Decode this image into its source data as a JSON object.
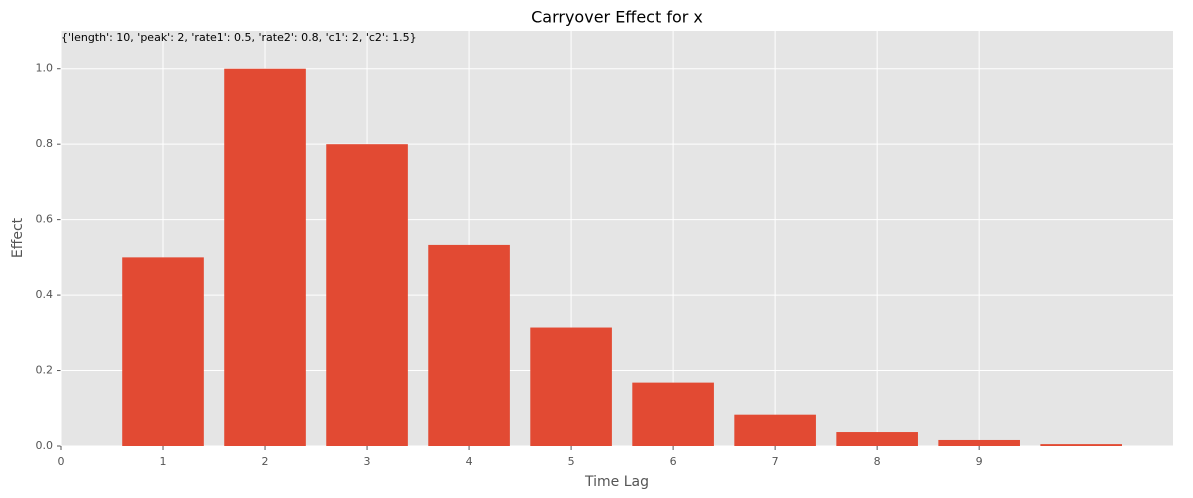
{
  "chart_data": {
    "type": "bar",
    "title": "Carryover Effect for x",
    "annotation": "{'length': 10, 'peak': 2, 'rate1': 0.5, 'rate2': 0.8, 'c1': 2, 'c2': 1.5}",
    "xlabel": "Time Lag",
    "ylabel": "Effect",
    "x": [
      1,
      2,
      3,
      4,
      5,
      6,
      7,
      8,
      9,
      10
    ],
    "values": [
      0.5,
      1.0,
      0.8,
      0.533,
      0.314,
      0.168,
      0.083,
      0.037,
      0.016,
      0.005
    ],
    "bar_width": 0.8,
    "color": "#e24a33",
    "xlim": [
      0,
      10.9
    ],
    "xticks": [
      0,
      1,
      2,
      3,
      4,
      5,
      6,
      7,
      8,
      9
    ],
    "ylim": [
      0,
      1.1
    ],
    "yticks": [
      {
        "value": 0,
        "label": "0.0"
      },
      {
        "value": 0.2,
        "label": "0.2"
      },
      {
        "value": 0.4,
        "label": "0.4"
      },
      {
        "value": 0.6,
        "label": "0.6"
      },
      {
        "value": 0.8,
        "label": "0.8"
      },
      {
        "value": 1,
        "label": "1.0"
      }
    ],
    "grid": true
  }
}
